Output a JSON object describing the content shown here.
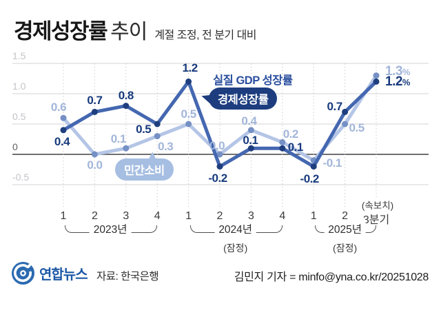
{
  "header": {
    "title_strong": "경제성장률",
    "title_light": "추이",
    "subtitle": "계절 조정, 전 분기 대비"
  },
  "chart_data": {
    "type": "line",
    "title": "경제성장률 추이",
    "ylim": [
      -0.5,
      1.5
    ],
    "grid": true,
    "y_axis": {
      "ticks": [
        1.5,
        1.0,
        0.5,
        0,
        -0.5
      ],
      "tick_labels": [
        "1.5",
        "1.0",
        "0.5",
        "0",
        "-0.5"
      ]
    },
    "x_groups": [
      {
        "year": "2023년",
        "note": "",
        "quarters": [
          "1",
          "2",
          "3",
          "4"
        ]
      },
      {
        "year": "2024년",
        "note": "(잠정)",
        "quarters": [
          "1",
          "2",
          "3",
          "4"
        ]
      },
      {
        "year": "2025년",
        "note": "(잠정)",
        "quarters": [
          "1",
          "2",
          "3분기"
        ]
      }
    ],
    "flash_note": "(속보치)",
    "series": [
      {
        "name": "민간소비",
        "color": "#b4c5e6",
        "dot_color": "#7590c4",
        "label_color": "#a2b5d9",
        "values": [
          0.6,
          0.0,
          0.1,
          0.3,
          0.5,
          0.0,
          0.4,
          0.2,
          -0.1,
          0.5,
          1.3
        ],
        "labels": [
          "0.6",
          "0.0",
          "0.1",
          "0.3",
          "0.5",
          "0.0",
          "0.4",
          "0.2",
          "-0.1",
          "0.5",
          "1.3%"
        ],
        "label_offsets": [
          [
            -7,
            -15
          ],
          [
            0,
            16
          ],
          [
            -11,
            -13
          ],
          [
            12,
            15
          ],
          [
            0,
            -14
          ],
          [
            -4,
            -12
          ],
          [
            -3,
            -13
          ],
          [
            12,
            -11
          ],
          [
            27,
            4
          ],
          [
            17,
            6
          ],
          [
            31,
            -6
          ]
        ]
      },
      {
        "name": "실질 GDP 성장률",
        "alias": "경제성장률",
        "color": "#4467b0",
        "dot_color": "#1f3e7e",
        "label_color": "#173a7c",
        "values": [
          0.4,
          0.7,
          0.8,
          0.5,
          1.2,
          -0.2,
          0.1,
          0.1,
          -0.2,
          0.7,
          1.2
        ],
        "labels": [
          "0.4",
          "0.7",
          "0.8",
          "0.5",
          "1.2",
          "-0.2",
          "0.1",
          "0.1",
          "-0.2",
          "0.7",
          "1.2%"
        ],
        "label_offsets": [
          [
            -2,
            17
          ],
          [
            0,
            -16
          ],
          [
            0,
            -15
          ],
          [
            -20,
            8
          ],
          [
            2,
            -19
          ],
          [
            -3,
            17
          ],
          [
            -1,
            -11
          ],
          [
            19,
            -1
          ],
          [
            -6,
            18
          ],
          [
            -15,
            -7
          ],
          [
            31,
            1
          ]
        ]
      }
    ],
    "annotations": {
      "gdp_series_label": "실질 GDP 성장률",
      "gdp_bubble": "경제성장률",
      "consumption_bubble": "민간소비"
    }
  },
  "footer": {
    "logo_text": "연합뉴스",
    "source": "자료: 한국은행",
    "credit": "김민지 기자 = minfo@yna.co.kr/20251028"
  }
}
